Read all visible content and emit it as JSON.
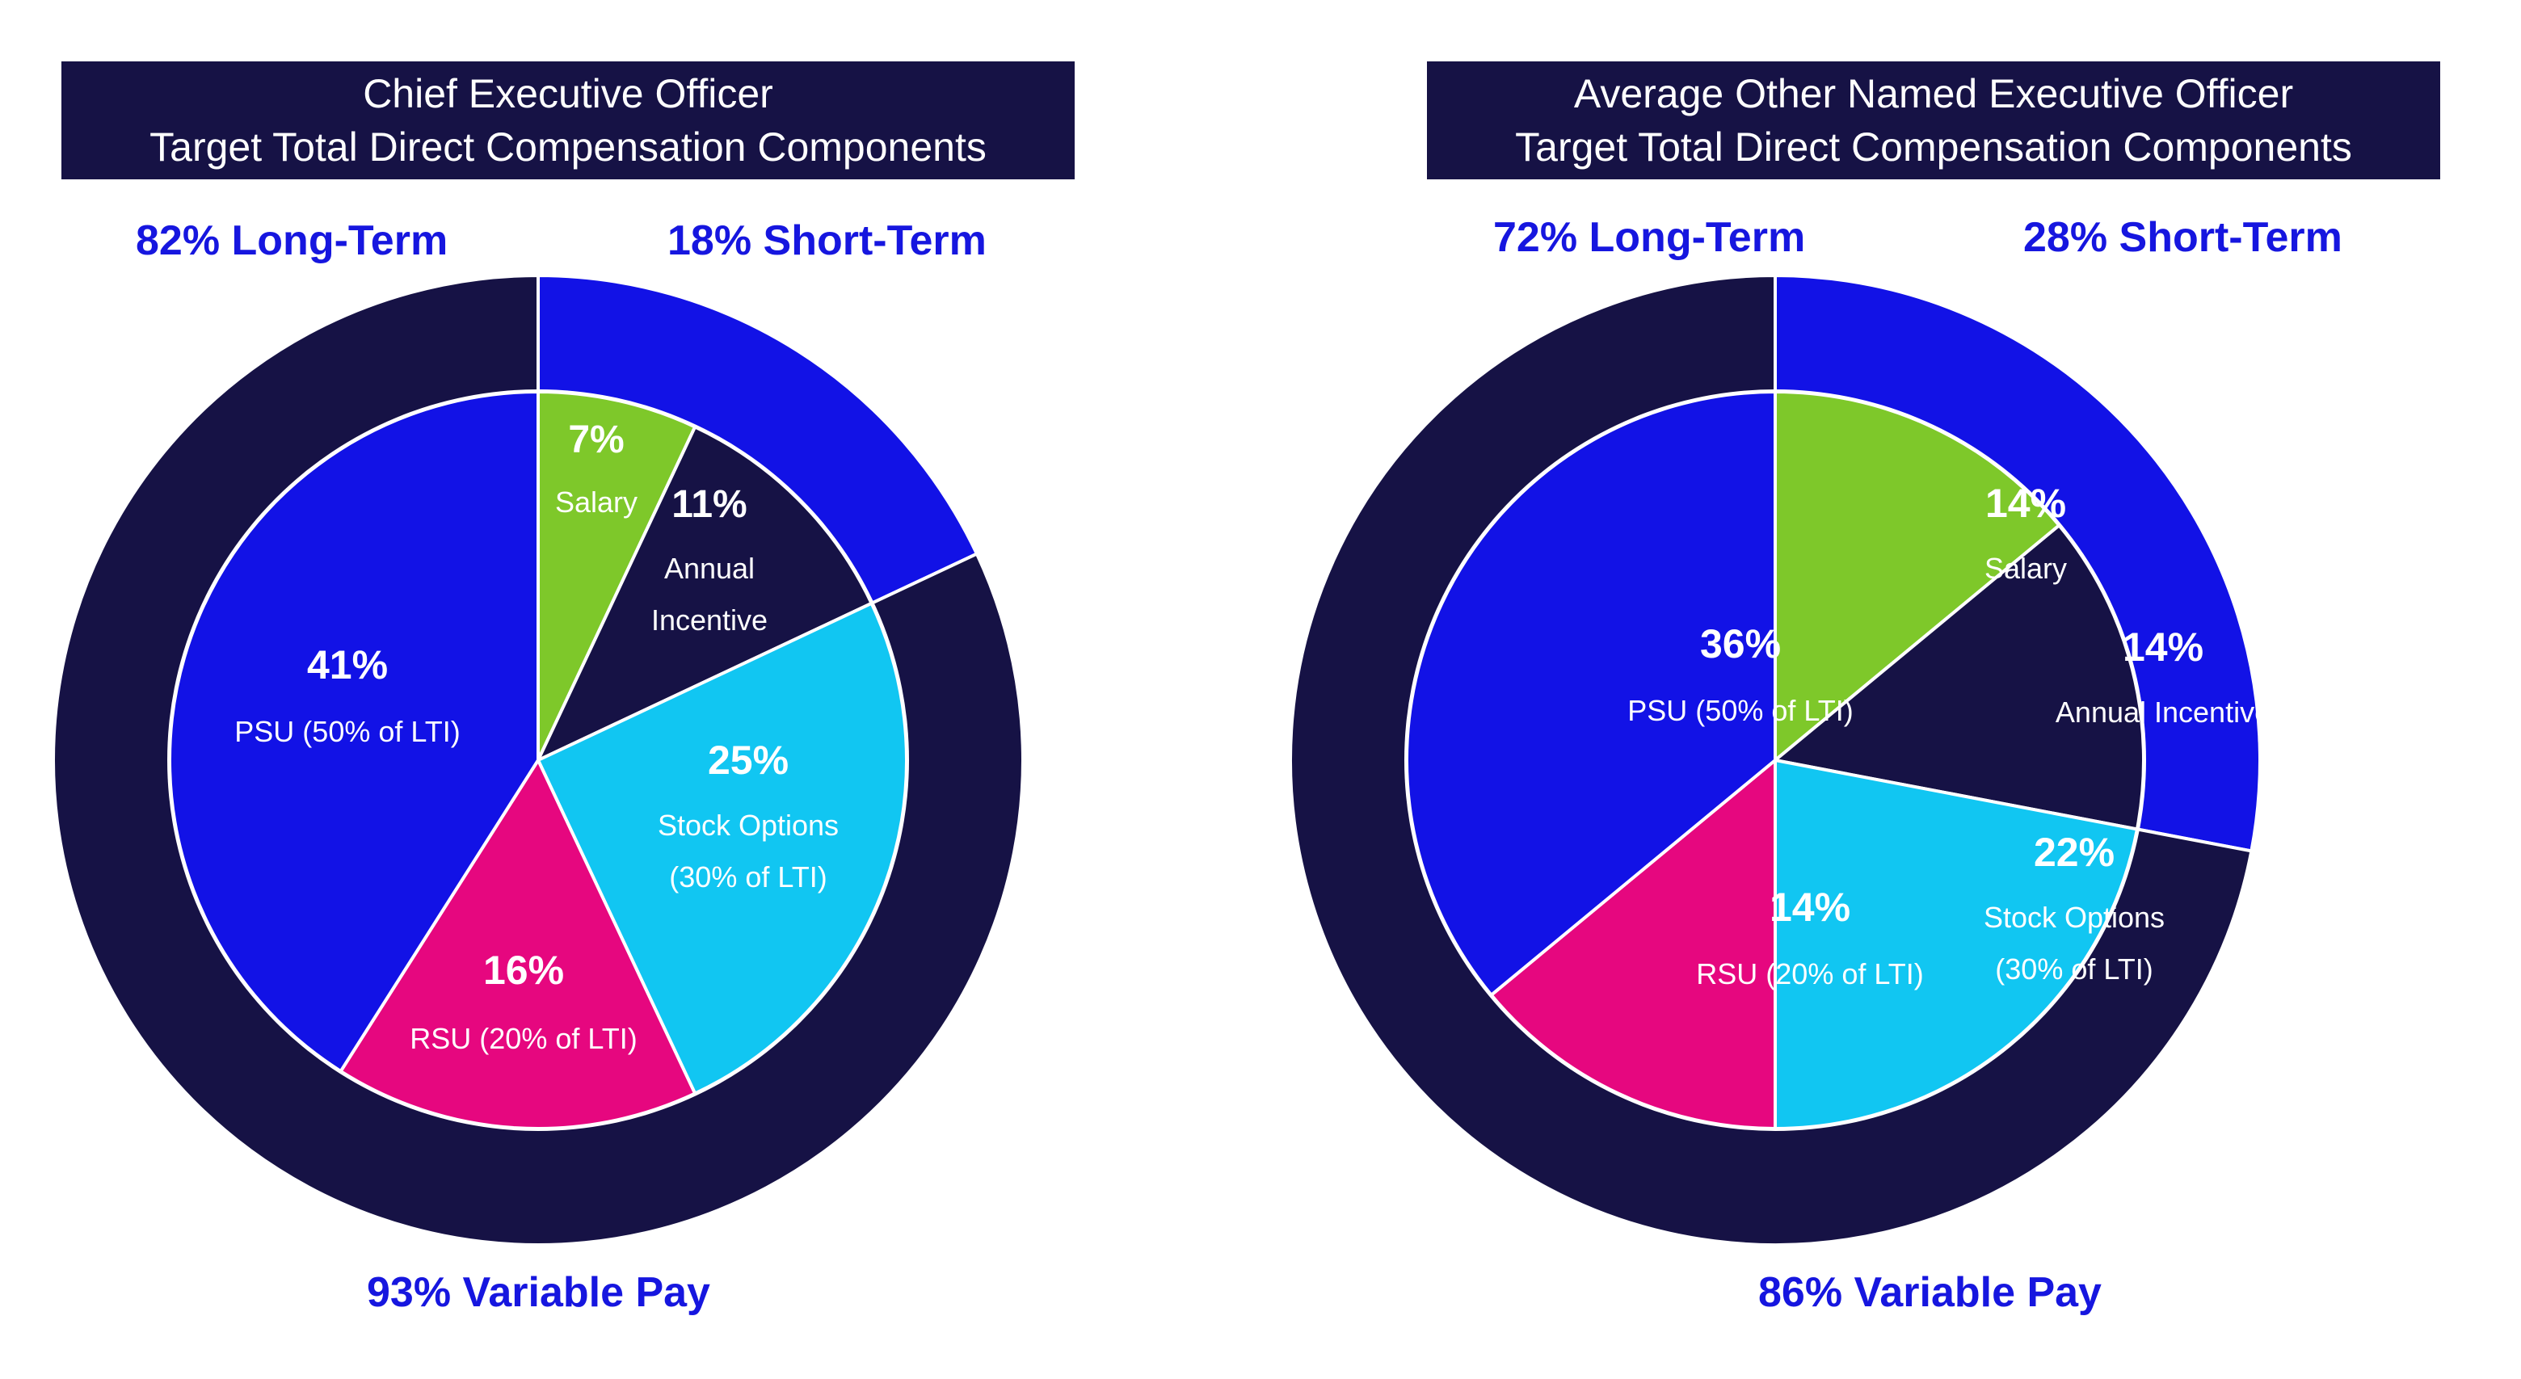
{
  "colors": {
    "navy": "#161245",
    "blue": "#1212e6",
    "green": "#7ec82a",
    "cyan": "#11c6f2",
    "magenta": "#e6077f",
    "label_blue": "#1616df"
  },
  "chart_data": [
    {
      "type": "pie",
      "title_lines": [
        "Chief Executive Officer",
        "Target Total Direct Compensation Components"
      ],
      "outer_ring": [
        {
          "name": "Short-Term",
          "value": 18,
          "label": "18% Short-Term",
          "color": "#1212e6"
        },
        {
          "name": "Long-Term",
          "value": 82,
          "label": "82% Long-Term",
          "color": "#161245"
        }
      ],
      "variable_pay": {
        "value": 93,
        "label": "93% Variable Pay"
      },
      "slices": [
        {
          "name": "Salary",
          "value": 7,
          "pct_label": "7%",
          "sub_lines": [
            "Salary"
          ],
          "color": "#7ec82a"
        },
        {
          "name": "Annual Incentive",
          "value": 11,
          "pct_label": "11%",
          "sub_lines": [
            "Annual",
            "Incentive"
          ],
          "color": "#161245"
        },
        {
          "name": "Stock Options",
          "value": 25,
          "pct_label": "25%",
          "sub_lines": [
            "Stock Options",
            "(30% of LTI)"
          ],
          "color": "#11c6f2"
        },
        {
          "name": "RSU",
          "value": 16,
          "pct_label": "16%",
          "sub_lines": [
            "RSU (20% of LTI)"
          ],
          "color": "#e6077f"
        },
        {
          "name": "PSU",
          "value": 41,
          "pct_label": "41%",
          "sub_lines": [
            "PSU (50% of LTI)"
          ],
          "color": "#1212e6"
        }
      ]
    },
    {
      "type": "pie",
      "title_lines": [
        "Average Other Named Executive Officer",
        "Target Total Direct Compensation Components"
      ],
      "outer_ring": [
        {
          "name": "Short-Term",
          "value": 28,
          "label": "28% Short-Term",
          "color": "#1212e6"
        },
        {
          "name": "Long-Term",
          "value": 72,
          "label": "72% Long-Term",
          "color": "#161245"
        }
      ],
      "variable_pay": {
        "value": 86,
        "label": "86% Variable Pay"
      },
      "slices": [
        {
          "name": "Salary",
          "value": 14,
          "pct_label": "14%",
          "sub_lines": [
            "Salary"
          ],
          "color": "#7ec82a"
        },
        {
          "name": "Annual Incentive",
          "value": 14,
          "pct_label": "14%",
          "sub_lines": [
            "Annual Incentive"
          ],
          "color": "#161245"
        },
        {
          "name": "Stock Options",
          "value": 22,
          "pct_label": "22%",
          "sub_lines": [
            "Stock Options",
            "(30% of LTI)"
          ],
          "color": "#11c6f2"
        },
        {
          "name": "RSU",
          "value": 14,
          "pct_label": "14%",
          "sub_lines": [
            "RSU (20% of LTI)"
          ],
          "color": "#e6077f"
        },
        {
          "name": "PSU",
          "value": 36,
          "pct_label": "36%",
          "sub_lines": [
            "PSU (50% of LTI)"
          ],
          "color": "#1212e6"
        }
      ]
    }
  ]
}
